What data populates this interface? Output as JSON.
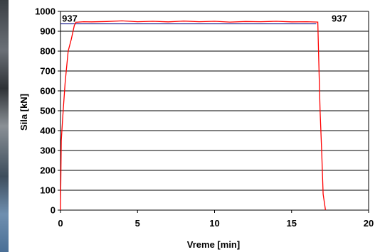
{
  "chart_data": {
    "type": "line",
    "xlabel": "Vreme [min]",
    "ylabel": "Sila [kN]",
    "xlim": [
      0,
      20
    ],
    "ylim": [
      0,
      1000
    ],
    "x_ticks": [
      0,
      5,
      10,
      15,
      20
    ],
    "y_ticks": [
      0,
      100,
      200,
      300,
      400,
      500,
      600,
      700,
      800,
      900,
      1000
    ],
    "grid": "horizontal",
    "reference_level": 937,
    "annotations": [
      {
        "text": "937",
        "x": 0.1,
        "y": 937
      },
      {
        "text": "937",
        "x": 17.6,
        "y": 937
      }
    ],
    "series": [
      {
        "color": "#ff0000",
        "x": [
          0,
          0.05,
          0.15,
          0.3,
          0.5,
          0.7,
          0.9,
          1.0,
          1.5,
          2.0,
          3.0,
          4.0,
          5.0,
          6.0,
          7.0,
          8.0,
          9.0,
          10.0,
          11.0,
          12.0,
          13.0,
          14.0,
          15.0,
          16.0,
          16.7,
          16.75,
          16.85,
          16.95,
          17.05,
          17.2
        ],
        "y": [
          0,
          350,
          470,
          640,
          800,
          860,
          930,
          945,
          948,
          947,
          949,
          952,
          948,
          950,
          947,
          951,
          948,
          950,
          946,
          949,
          948,
          950,
          947,
          948,
          946,
          800,
          500,
          300,
          80,
          0
        ]
      }
    ]
  }
}
